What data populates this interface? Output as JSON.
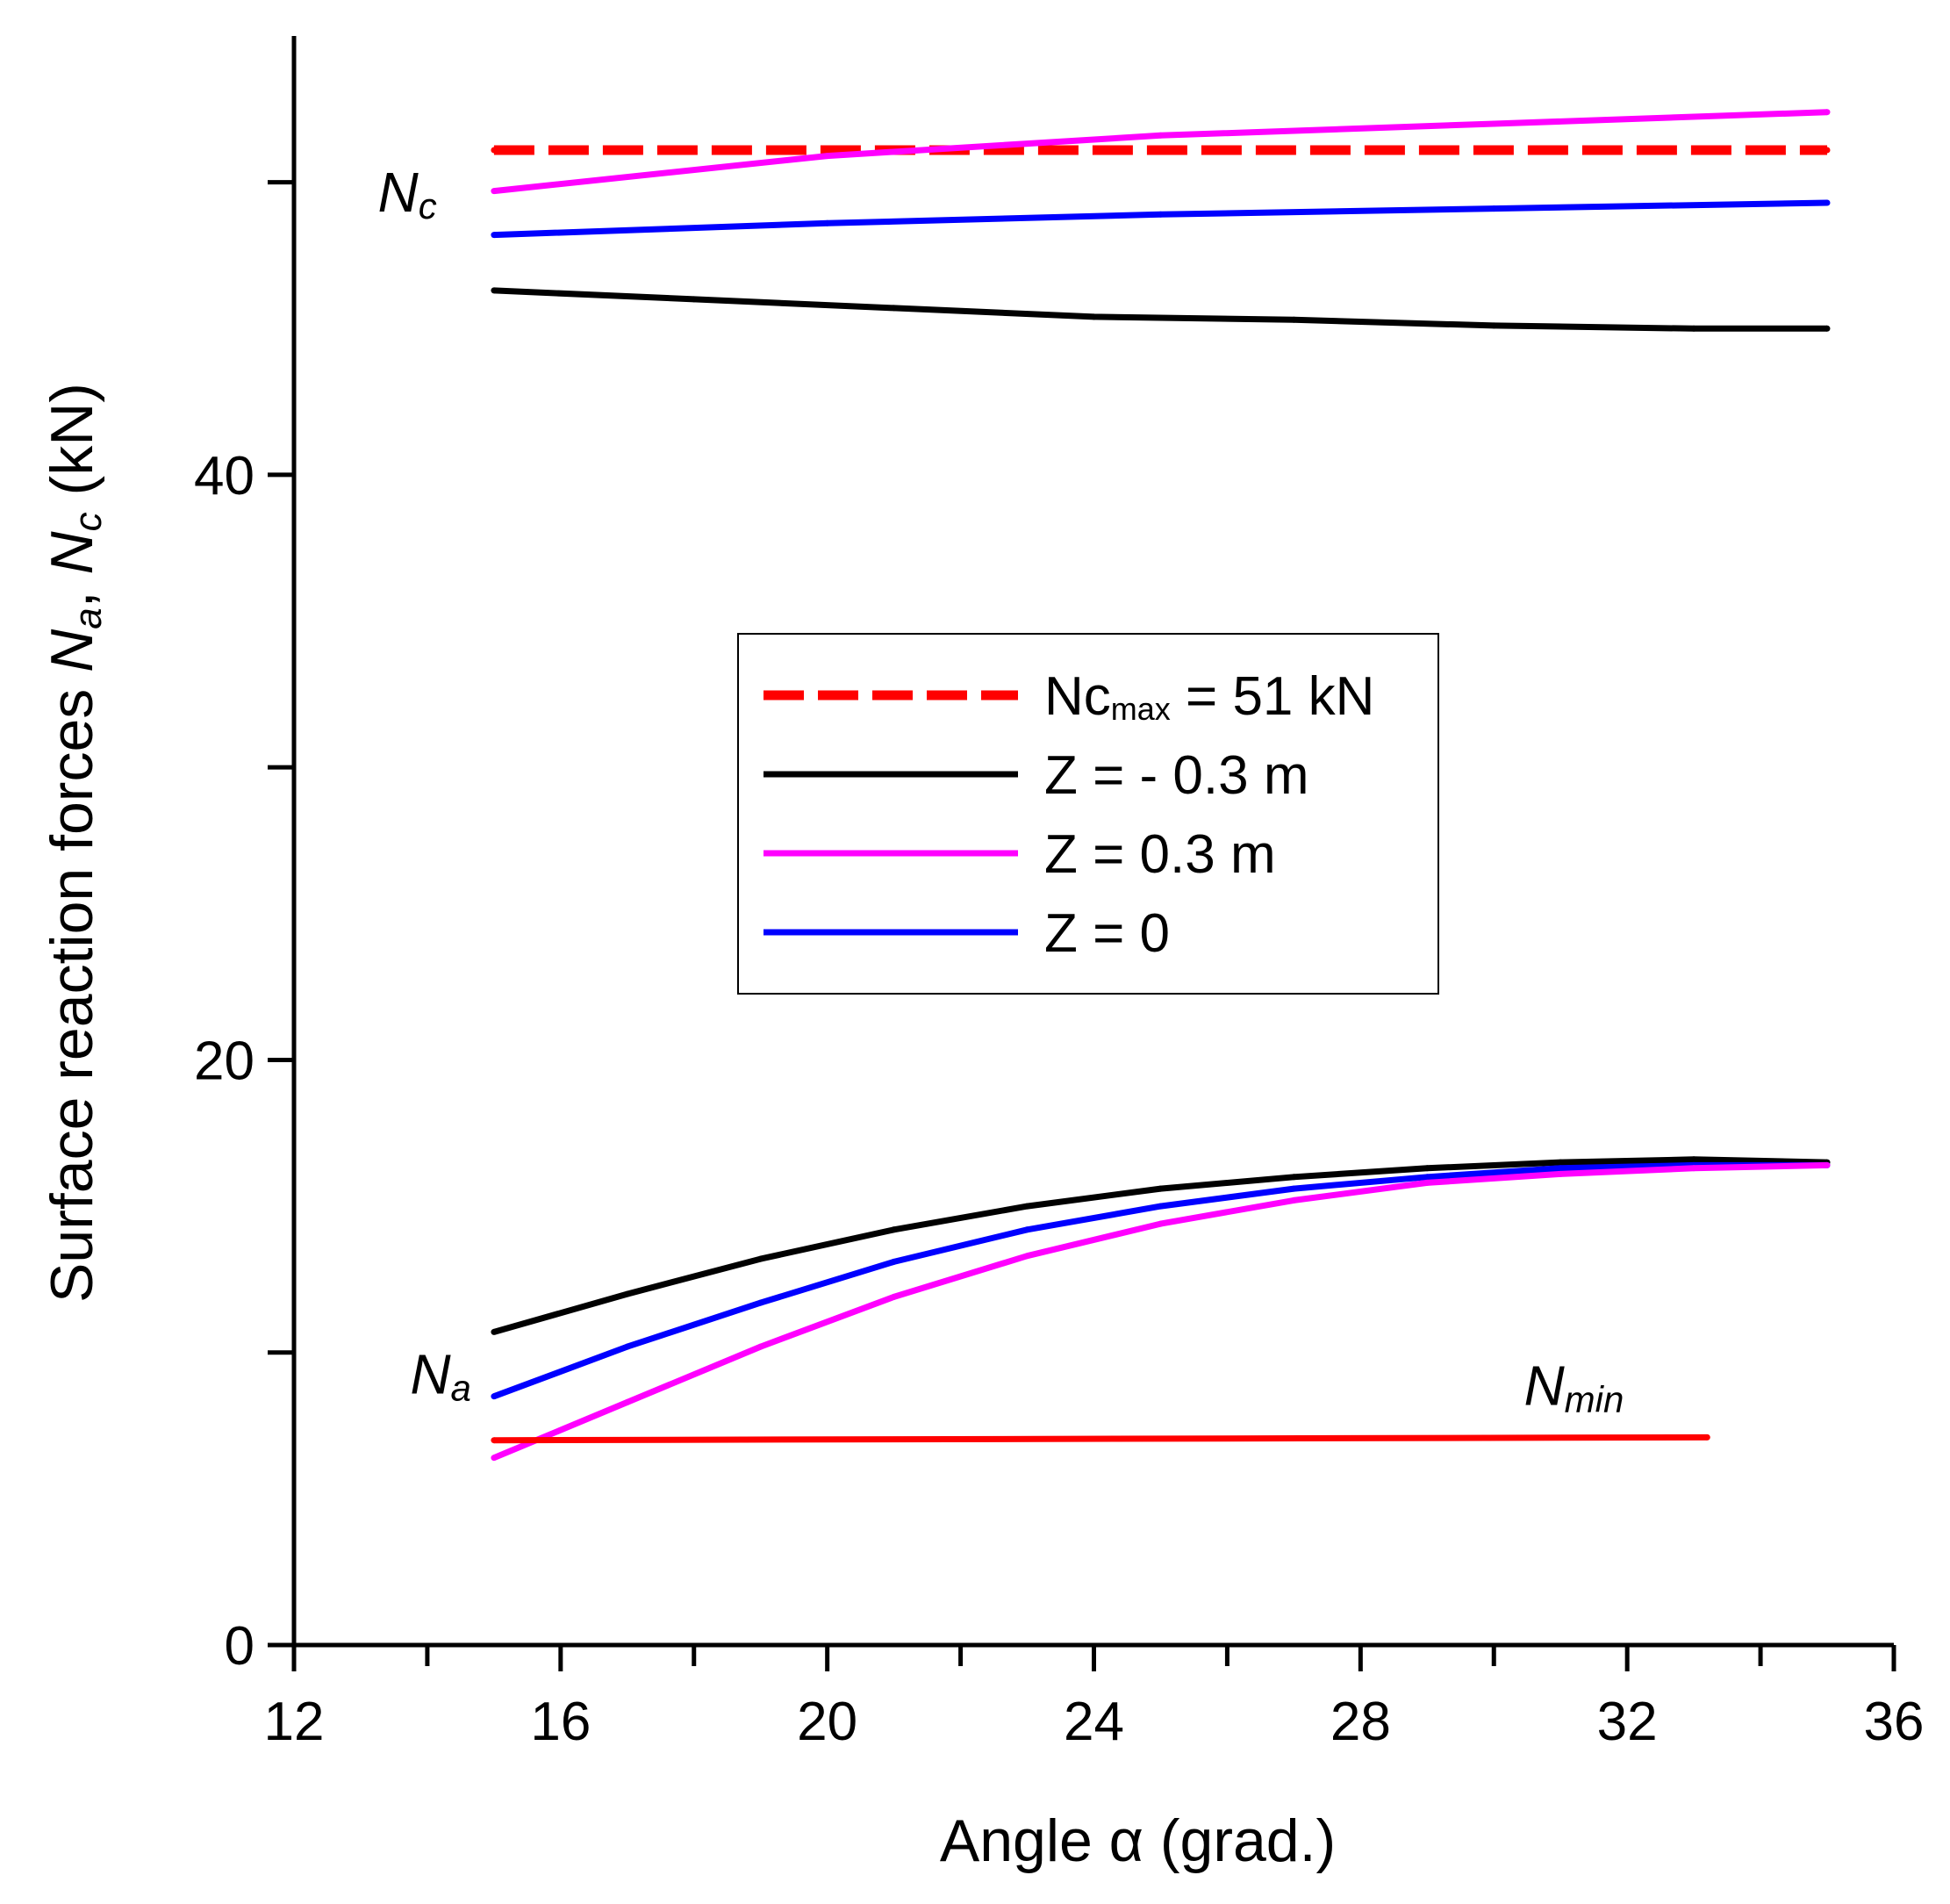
{
  "chart_data": {
    "type": "line",
    "title": "",
    "xlabel": "Angle α (grad.)",
    "ylabel": {
      "prefix": "Surface reaction forces ",
      "n1": "N",
      "s1": "a",
      "sep": ", ",
      "n2": "N",
      "s2": "c",
      "suffix": " (kN)"
    },
    "xlim": [
      12,
      36
    ],
    "ylim": [
      0,
      55
    ],
    "x_ticks": [
      12,
      16,
      20,
      24,
      28,
      32,
      36
    ],
    "x_minor_ticks": [
      14,
      18,
      22,
      26,
      30,
      34
    ],
    "y_ticks": [
      0,
      20,
      40
    ],
    "y_minor_ticks": [
      10,
      30,
      50
    ],
    "legend_position": "center",
    "colors": {
      "axis": "#000000",
      "ncmax": "#ff0000",
      "z_neg": "#000000",
      "z_pos": "#ff00ff",
      "z_zero": "#0000ff",
      "nmin": "#ff0000"
    },
    "series": [
      {
        "key": "ncmax",
        "name": "Ncmax = 51 kN",
        "legend_main": "Nc",
        "legend_sub": "max",
        "legend_rest": " = 51 kN",
        "style": "dashed",
        "color_key": "ncmax",
        "x": [
          15,
          35
        ],
        "y": [
          51.1,
          51.1
        ]
      },
      {
        "key": "z_neg_nc",
        "name": "Z = - 0.3 m",
        "legend_main": "Z = - 0.3 m",
        "style": "solid",
        "color_key": "z_neg",
        "x": [
          15,
          18,
          21,
          24,
          27,
          30,
          33,
          35
        ],
        "y": [
          46.3,
          46.0,
          45.7,
          45.4,
          45.3,
          45.1,
          45.0,
          45.0
        ]
      },
      {
        "key": "z_pos_nc",
        "name": "Z = 0.3 m",
        "legend_main": "Z = 0.3 m",
        "style": "solid",
        "color_key": "z_pos",
        "x": [
          15,
          20,
          25,
          30,
          35
        ],
        "y": [
          49.7,
          50.9,
          51.6,
          52.0,
          52.4
        ]
      },
      {
        "key": "z_zero_nc",
        "name": "Z = 0",
        "legend_main": "Z = 0",
        "style": "solid",
        "color_key": "z_zero",
        "x": [
          15,
          20,
          25,
          30,
          35
        ],
        "y": [
          48.2,
          48.6,
          48.9,
          49.1,
          49.3
        ]
      },
      {
        "key": "z_neg_na",
        "style": "solid",
        "color_key": "z_neg",
        "x": [
          15,
          17,
          19,
          21,
          23,
          25,
          27,
          29,
          31,
          33,
          35
        ],
        "y": [
          10.7,
          12.0,
          13.2,
          14.2,
          15.0,
          15.6,
          16.0,
          16.3,
          16.5,
          16.6,
          16.5
        ]
      },
      {
        "key": "z_zero_na",
        "style": "solid",
        "color_key": "z_zero",
        "x": [
          15,
          17,
          19,
          21,
          23,
          25,
          27,
          29,
          31,
          33,
          35
        ],
        "y": [
          8.5,
          10.2,
          11.7,
          13.1,
          14.2,
          15.0,
          15.6,
          16.0,
          16.3,
          16.4,
          16.4
        ]
      },
      {
        "key": "z_pos_na",
        "style": "solid",
        "color_key": "z_pos",
        "x": [
          15,
          17,
          19,
          21,
          23,
          25,
          27,
          29,
          31,
          33,
          35
        ],
        "y": [
          6.4,
          8.3,
          10.2,
          11.9,
          13.3,
          14.4,
          15.2,
          15.8,
          16.1,
          16.3,
          16.4
        ]
      },
      {
        "key": "nmin",
        "style": "solid",
        "color_key": "nmin",
        "x": [
          15,
          33.2
        ],
        "y": [
          7.0,
          7.1
        ]
      }
    ],
    "annotations": [
      {
        "key": "nc",
        "main": "N",
        "sub": "c",
        "x": 13.7,
        "y": 49.0
      },
      {
        "key": "na",
        "main": "N",
        "sub": "a",
        "x": 14.2,
        "y": 8.6
      },
      {
        "key": "nmin",
        "main": "N",
        "sub": "min",
        "x": 31.2,
        "y": 8.2
      }
    ]
  }
}
